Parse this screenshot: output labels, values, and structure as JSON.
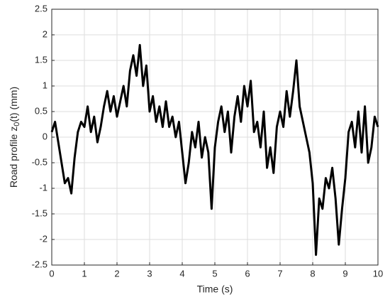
{
  "chart_data": {
    "type": "line",
    "xlabel": "Time  (s)",
    "ylabel": [
      "Road profile z",
      "0",
      "(t) (mm)"
    ],
    "x": [
      0,
      0.1,
      0.2,
      0.3,
      0.4,
      0.5,
      0.6,
      0.7,
      0.8,
      0.9,
      1,
      1.1,
      1.2,
      1.3,
      1.4,
      1.5,
      1.6,
      1.7,
      1.8,
      1.9,
      2,
      2.1,
      2.2,
      2.3,
      2.4,
      2.5,
      2.6,
      2.7,
      2.8,
      2.9,
      3,
      3.1,
      3.2,
      3.3,
      3.4,
      3.5,
      3.6,
      3.7,
      3.8,
      3.9,
      4,
      4.1,
      4.2,
      4.3,
      4.4,
      4.5,
      4.6,
      4.7,
      4.8,
      4.9,
      5,
      5.1,
      5.2,
      5.3,
      5.4,
      5.5,
      5.6,
      5.7,
      5.8,
      5.9,
      6,
      6.1,
      6.2,
      6.3,
      6.4,
      6.5,
      6.6,
      6.7,
      6.8,
      6.9,
      7,
      7.1,
      7.2,
      7.3,
      7.4,
      7.5,
      7.6,
      7.7,
      7.8,
      7.9,
      8,
      8.1,
      8.2,
      8.3,
      8.4,
      8.5,
      8.6,
      8.7,
      8.8,
      8.9,
      9,
      9.1,
      9.2,
      9.3,
      9.4,
      9.5,
      9.6,
      9.7,
      9.8,
      9.9,
      10
    ],
    "series": [
      {
        "color": "#000000",
        "values": [
          0.1,
          0.3,
          -0.1,
          -0.5,
          -0.9,
          -0.8,
          -1.1,
          -0.4,
          0.1,
          0.3,
          0.2,
          0.6,
          0.1,
          0.4,
          -0.1,
          0.2,
          0.6,
          0.9,
          0.5,
          0.8,
          0.4,
          0.7,
          1.0,
          0.6,
          1.3,
          1.6,
          1.2,
          1.8,
          1.0,
          1.4,
          0.5,
          0.8,
          0.3,
          0.6,
          0.2,
          0.7,
          0.2,
          0.4,
          0.0,
          0.3,
          -0.3,
          -0.9,
          -0.5,
          0.1,
          -0.2,
          0.3,
          -0.4,
          0.0,
          -0.3,
          -1.4,
          -0.2,
          0.3,
          0.6,
          0.1,
          0.5,
          -0.3,
          0.4,
          0.8,
          0.3,
          1.0,
          0.6,
          1.1,
          0.1,
          0.3,
          -0.2,
          0.5,
          -0.6,
          -0.2,
          -0.7,
          0.2,
          0.5,
          0.2,
          0.9,
          0.4,
          0.9,
          1.5,
          0.6,
          0.3,
          0.0,
          -0.3,
          -0.9,
          -2.3,
          -1.2,
          -1.4,
          -0.8,
          -1.0,
          -0.6,
          -1.2,
          -2.1,
          -1.4,
          -0.8,
          0.1,
          0.3,
          -0.2,
          0.5,
          -0.3,
          0.6,
          -0.5,
          -0.2,
          0.4,
          0.2
        ]
      }
    ],
    "xlim": [
      0,
      10
    ],
    "xticks": [
      0,
      1,
      2,
      3,
      4,
      5,
      6,
      7,
      8,
      9,
      10
    ],
    "ylim": [
      -2.5,
      2.5
    ],
    "yticks": [
      -2.5,
      -2,
      -1.5,
      -1,
      -0.5,
      0,
      0.5,
      1,
      1.5,
      2,
      2.5
    ],
    "grid": true
  }
}
